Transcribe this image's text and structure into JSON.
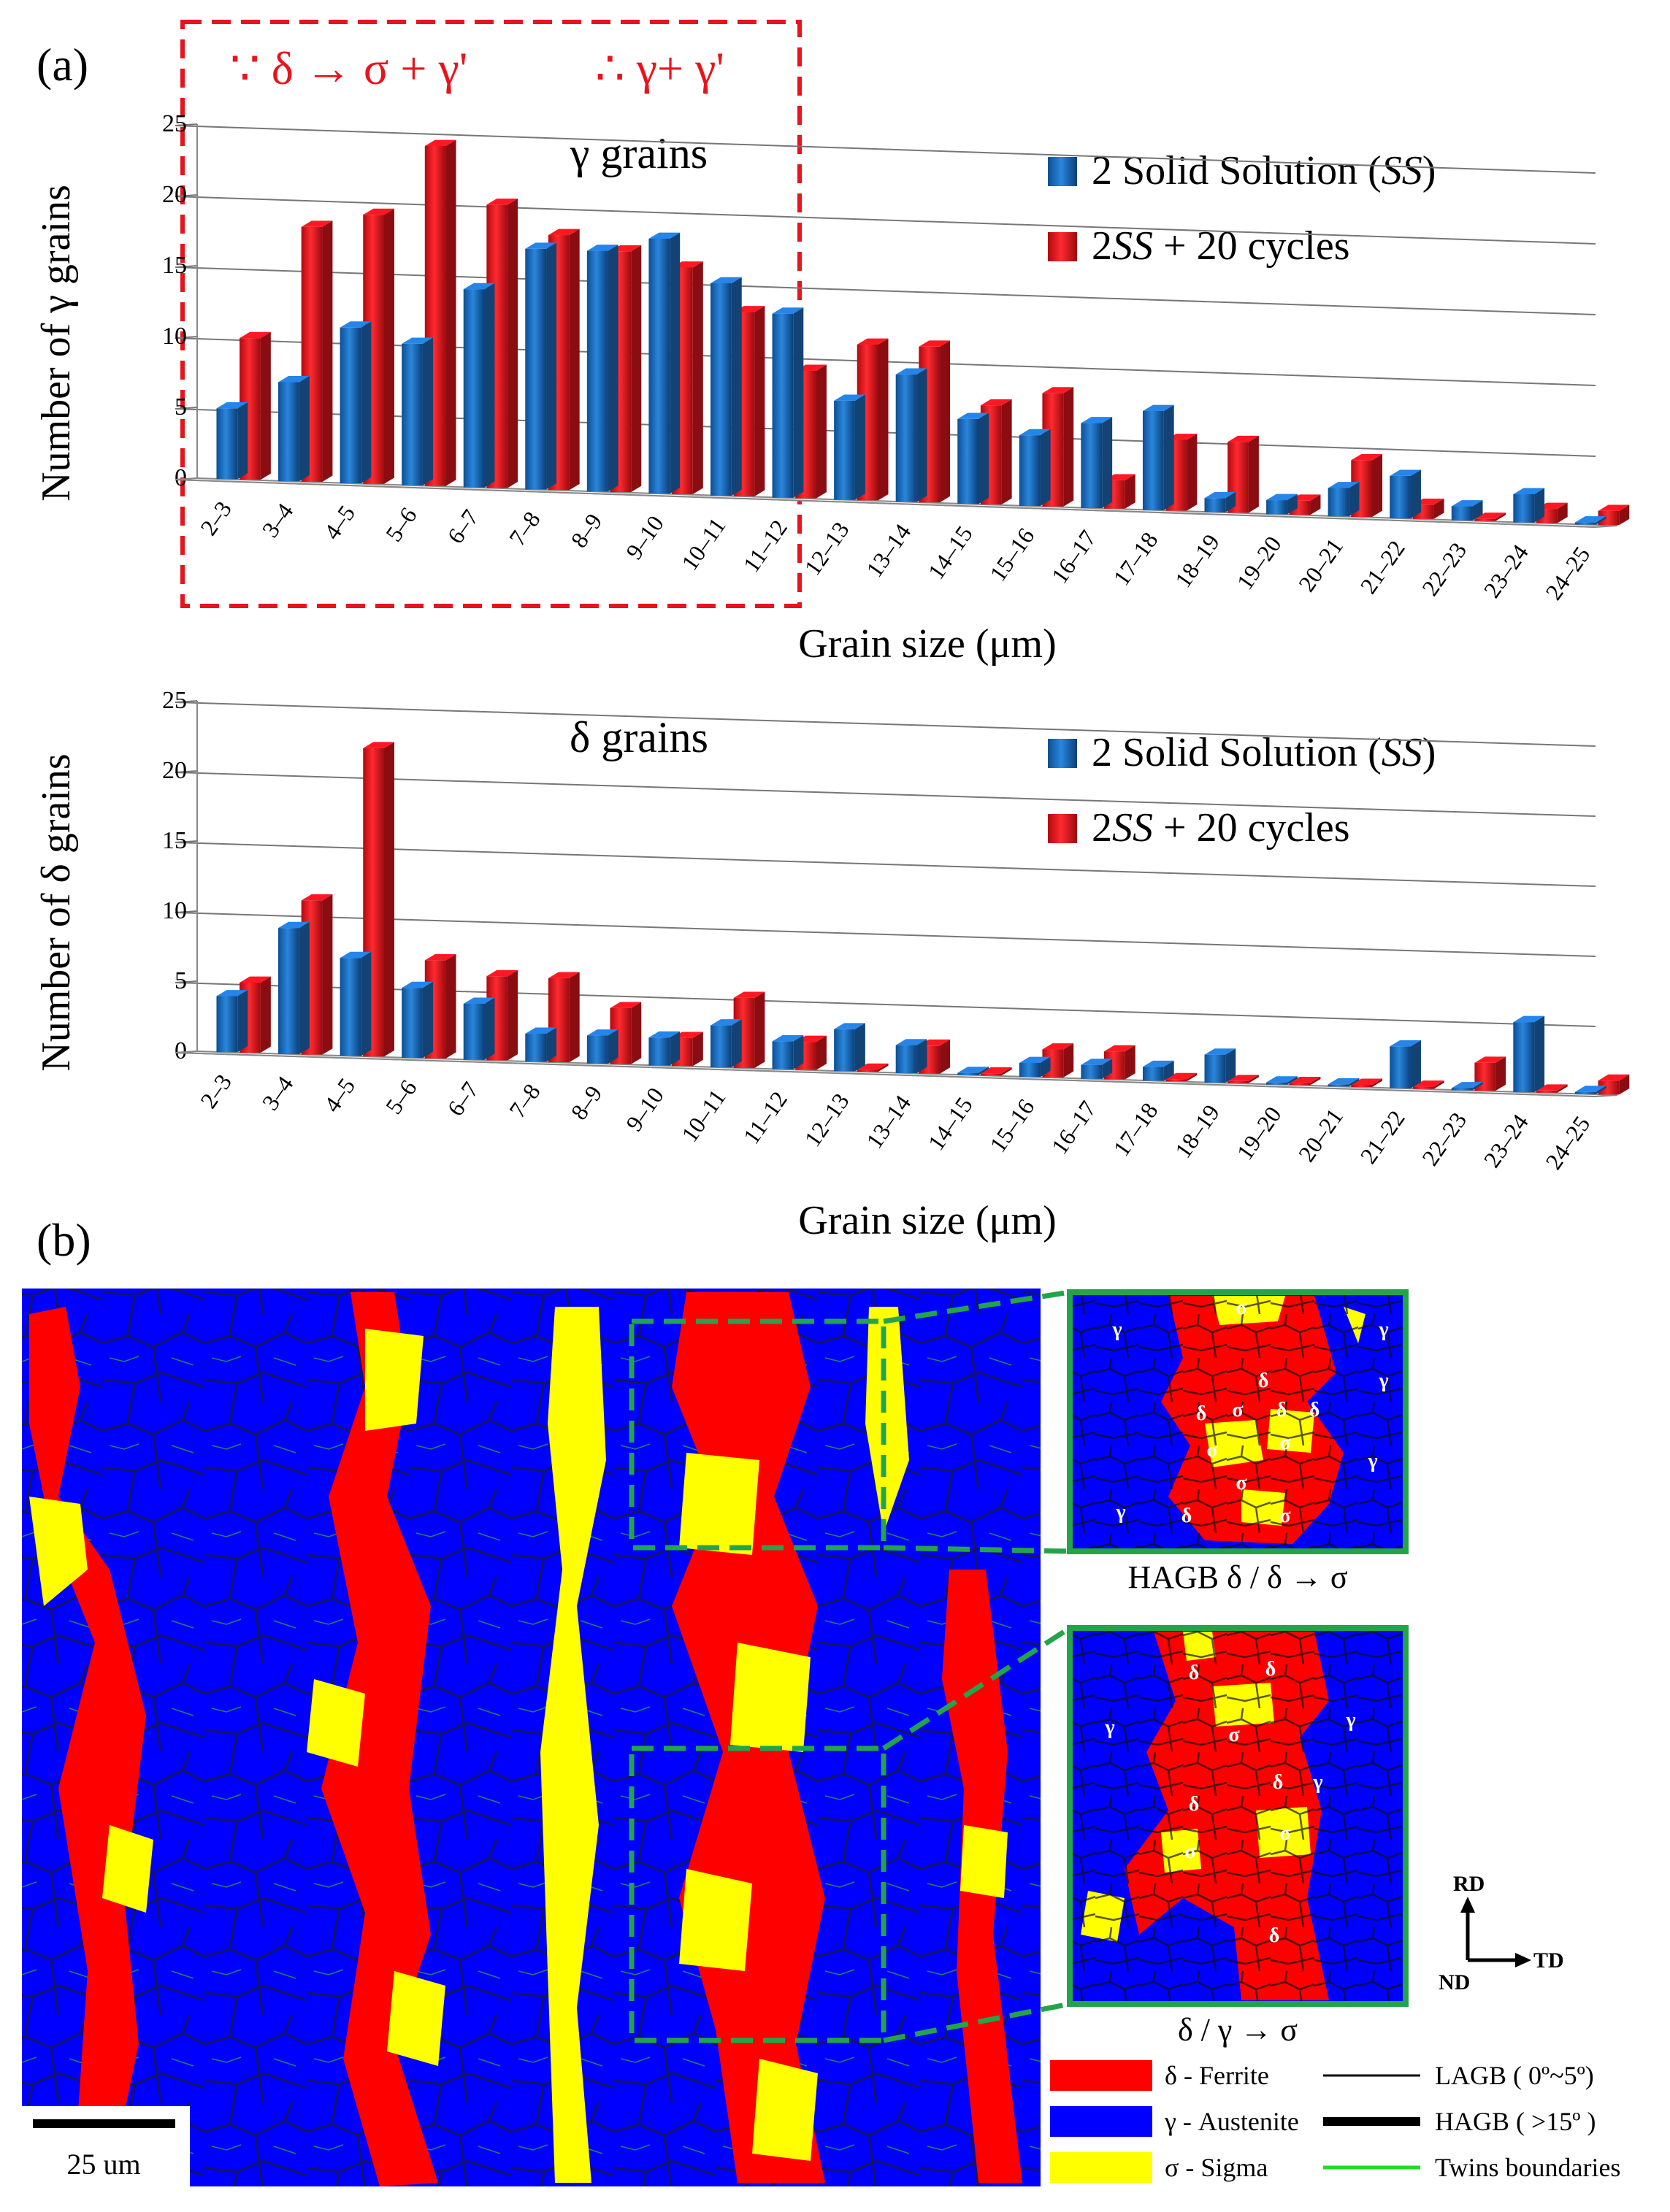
{
  "panel_a_label": "(a)",
  "panel_b_label": "(b)",
  "annotations": {
    "transform_left": "∵ δ → σ + γ'",
    "transform_right": "∴ γ+ γ'"
  },
  "colors": {
    "ss": "#1f6fc2",
    "cycles": "#e8141c",
    "annotation": "#e8141c",
    "ferrite": "#ff0000",
    "austenite": "#0000ff",
    "sigma": "#ffff00",
    "twins": "#22dd22",
    "inset_frame": "#22a54a"
  },
  "chart_data": [
    {
      "type": "bar",
      "title": "γ grains",
      "xlabel": "Grain size (μm)",
      "ylabel": "Number of γ grains",
      "ylim": [
        0,
        25
      ],
      "yticks": [
        "0",
        "5",
        "10",
        "15",
        "20",
        "25"
      ],
      "categories": [
        "2–3",
        "3–4",
        "4–5",
        "5–6",
        "6–7",
        "7–8",
        "8–9",
        "9–10",
        "10–11",
        "11–12",
        "12–13",
        "13–14",
        "14–15",
        "15–16",
        "16–17",
        "17–18",
        "18–19",
        "19–20",
        "20–21",
        "21–22",
        "22–23",
        "23–24",
        "24–25"
      ],
      "series": [
        {
          "name": "2 Solid Solution (SS)",
          "values": [
            5,
            7,
            11,
            10,
            14,
            17,
            17,
            18,
            15,
            13,
            7,
            9,
            6,
            5,
            6,
            7,
            1,
            1,
            2,
            3,
            1,
            2,
            0
          ]
        },
        {
          "name": "2SS + 20 cycles",
          "values": [
            10,
            18,
            19,
            24,
            20,
            18,
            17,
            16,
            13,
            9,
            11,
            11,
            7,
            8,
            2,
            5,
            5,
            1,
            4,
            1,
            0,
            1,
            1
          ]
        }
      ]
    },
    {
      "type": "bar",
      "title": "δ grains",
      "xlabel": "Grain size (μm)",
      "ylabel": "Number of δ grains",
      "ylim": [
        0,
        25
      ],
      "yticks": [
        "0",
        "5",
        "10",
        "15",
        "20",
        "25"
      ],
      "categories": [
        "2–3",
        "3–4",
        "4–5",
        "5–6",
        "6–7",
        "7–8",
        "8–9",
        "9–10",
        "10–11",
        "11–12",
        "12–13",
        "13–14",
        "14–15",
        "15–16",
        "16–17",
        "17–18",
        "18–19",
        "19–20",
        "20–21",
        "21–22",
        "22–23",
        "23–24",
        "24–25"
      ],
      "series": [
        {
          "name": "2 Solid Solution (SS)",
          "values": [
            4,
            9,
            7,
            5,
            4,
            2,
            2,
            2,
            3,
            2,
            3,
            2,
            0,
            1,
            1,
            1,
            2,
            0,
            0,
            3,
            0,
            5,
            0
          ]
        },
        {
          "name": "2SS + 20 cycles",
          "values": [
            5,
            11,
            22,
            7,
            6,
            6,
            4,
            2,
            5,
            2,
            0,
            2,
            0,
            2,
            2,
            0,
            0,
            0,
            0,
            0,
            2,
            0,
            1
          ]
        }
      ]
    }
  ],
  "legend": {
    "ss_prefix": "2 Solid Solution (",
    "ss_italic": "SS",
    "ss_suffix": ")",
    "cyc_prefix": "2",
    "cyc_italic": "SS",
    "cyc_suffix": " + 20 cycles"
  },
  "micrograph": {
    "inset1_caption": "HAGB δ / δ → σ",
    "inset2_caption": "δ / γ → σ",
    "inset1_labels": [
      "γ",
      "σ",
      "γ",
      "δ",
      "γ",
      "δ",
      "σ",
      "δ",
      "δ",
      "σ",
      "σ",
      "σ",
      "γ",
      "γ",
      "δ",
      "σ"
    ],
    "inset2_labels": [
      "δ",
      "δ",
      "γ",
      "σ",
      "γ",
      "δ",
      "γ",
      "δ",
      "σ",
      "σ",
      "δ"
    ],
    "scale_bar": "25 um",
    "axes": {
      "rd": "RD",
      "td": "TD",
      "nd": "ND"
    },
    "legend": [
      {
        "key": "ferrite",
        "label": "δ - Ferrite"
      },
      {
        "key": "austenite",
        "label": "γ - Austenite"
      },
      {
        "key": "sigma",
        "label": "σ - Sigma"
      }
    ],
    "boundary_legend": [
      {
        "key": "lagb",
        "label": "LAGB ( 0º~5º)"
      },
      {
        "key": "hagb",
        "label": "HAGB ( >15º )"
      },
      {
        "key": "twins",
        "label": "Twins  boundaries"
      }
    ]
  }
}
